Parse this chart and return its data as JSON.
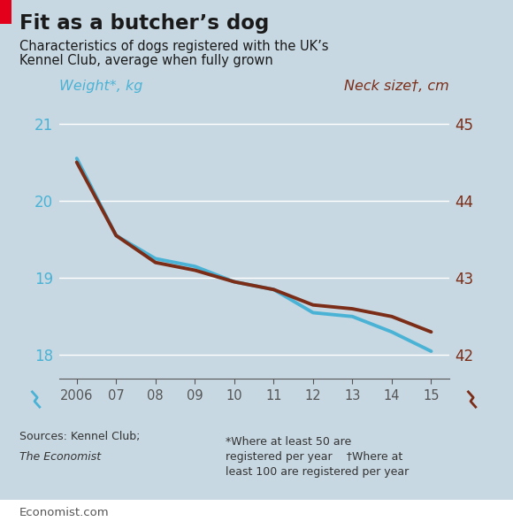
{
  "title": "Fit as a butcher’s dog",
  "subtitle_line1": "Characteristics of dogs registered with the UK’s",
  "subtitle_line2": "Kennel Club, average when fully grown",
  "left_axis_label": "Weight*, kg",
  "right_axis_label": "Neck size†, cm",
  "years": [
    2006,
    2007,
    2008,
    2009,
    2010,
    2011,
    2012,
    2013,
    2014,
    2015
  ],
  "weight_kg": [
    20.55,
    19.55,
    19.25,
    19.15,
    18.95,
    18.85,
    18.55,
    18.5,
    18.3,
    18.05
  ],
  "neck_cm": [
    44.5,
    43.55,
    43.2,
    43.1,
    42.95,
    42.85,
    42.65,
    42.6,
    42.5,
    42.3
  ],
  "left_ylim": [
    17.7,
    21.3
  ],
  "right_ylim": [
    41.7,
    45.3
  ],
  "left_yticks": [
    18,
    19,
    20,
    21
  ],
  "right_yticks": [
    42,
    43,
    44,
    45
  ],
  "bg_color": "#c8d8e2",
  "blue_color": "#4ab3d5",
  "brown_color": "#7b2d18",
  "left_label_color": "#4ab3d5",
  "right_label_color": "#7b2d18",
  "grid_color": "#ffffff",
  "red_bar_color": "#e3001b",
  "title_color": "#1a1a1a",
  "subtitle_color": "#1a1a1a",
  "axis_tick_color": "#555555",
  "source_left_1": "Sources: Kennel Club;",
  "source_left_2": "The Economist",
  "footnote": "*Where at least 50 are\nregistered per year    †Where at\nleast 100 are registered per year",
  "economist_url": "Economist.com",
  "x_tick_labels": [
    "2006",
    "07",
    "08",
    "09",
    "10",
    "11",
    "12",
    "13",
    "14",
    "15"
  ]
}
